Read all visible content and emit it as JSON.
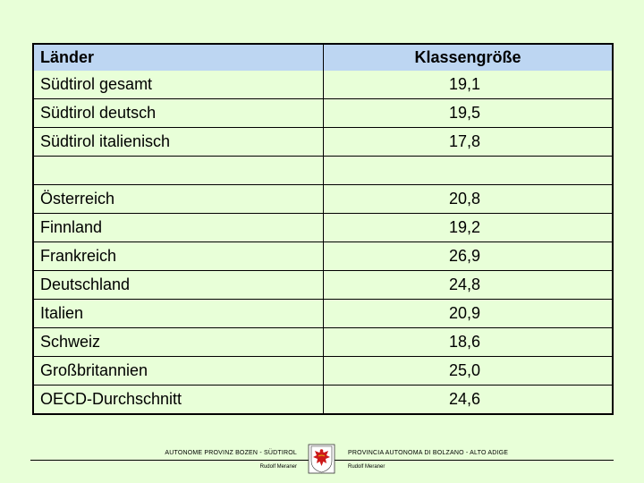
{
  "table": {
    "header": {
      "col1": "Länder",
      "col2": "Klassengröße"
    },
    "rows": [
      {
        "land": "Südtirol gesamt",
        "value": "19,1"
      },
      {
        "land": "Südtirol deutsch",
        "value": "19,5"
      },
      {
        "land": "Südtirol italienisch",
        "value": "17,8"
      },
      {
        "land": "",
        "value": ""
      },
      {
        "land": "Österreich",
        "value": "20,8"
      },
      {
        "land": "Finnland",
        "value": "19,2"
      },
      {
        "land": "Frankreich",
        "value": "26,9"
      },
      {
        "land": "Deutschland",
        "value": "24,8"
      },
      {
        "land": "Italien",
        "value": "20,9"
      },
      {
        "land": "Schweiz",
        "value": "18,6"
      },
      {
        "land": "Großbritannien",
        "value": "25,0"
      },
      {
        "land": "OECD-Durchschnitt",
        "value": "24,6"
      }
    ]
  },
  "footer": {
    "left_title": "AUTONOME PROVINZ BOZEN - SÜDTIROL",
    "right_title": "PROVINCIA AUTONOMA DI BOLZANO - ALTO ADIGE",
    "left_name": "Rudolf Meraner",
    "right_name": "Rudolf Meraner",
    "emblem_icon": "eagle-coat-of-arms-icon",
    "colors": {
      "background": "#e8ffd8",
      "header": "#bdd6f2",
      "emblem_red": "#cc1a1a"
    }
  }
}
